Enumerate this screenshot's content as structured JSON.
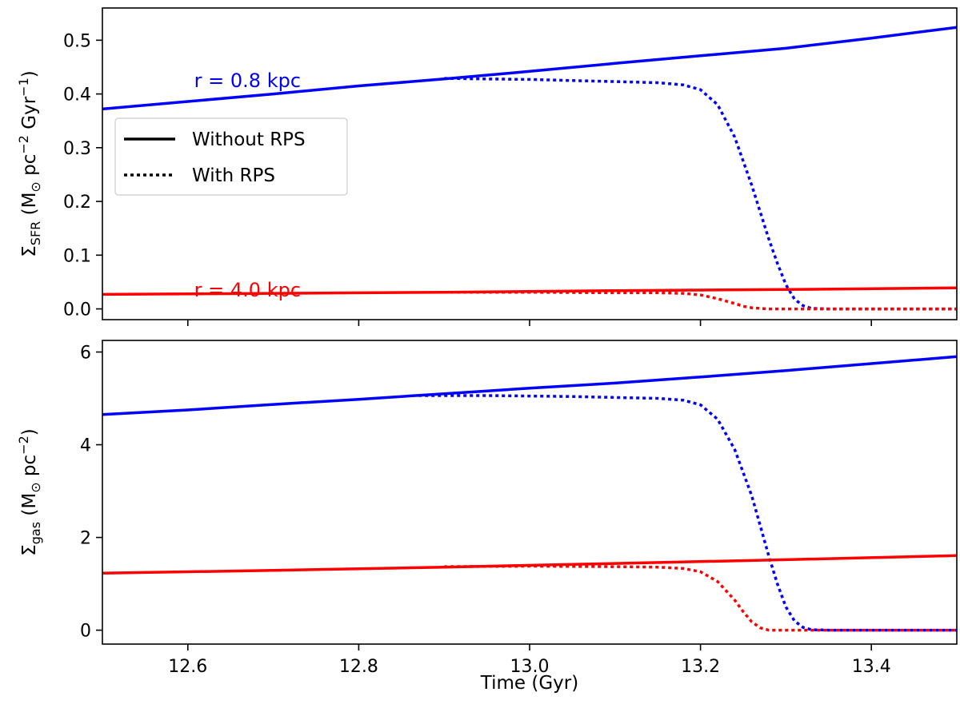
{
  "chart_data": [
    {
      "type": "line",
      "panel": "top",
      "xlim": [
        12.5,
        13.5
      ],
      "ylim": [
        -0.02,
        0.56
      ],
      "yticks": [
        0.0,
        0.1,
        0.2,
        0.3,
        0.4,
        0.5
      ],
      "ytick_labels": [
        "0.0",
        "0.1",
        "0.2",
        "0.3",
        "0.4",
        "0.5"
      ],
      "ylabel_parts": {
        "sym": "Σ",
        "sub": "SFR",
        "pre": " (M",
        "sun": "⊙",
        "mid1": " pc",
        "exp1": "−2",
        "mid2": " Gyr",
        "exp2": "−1",
        "post": ")"
      },
      "annotations": [
        {
          "text": "r = 0.8 kpc",
          "color": "#0000ff",
          "x": 12.51,
          "y": 0.425
        },
        {
          "text": "r = 4.0 kpc",
          "color": "#ff0000",
          "x": 12.51,
          "y": 0.035
        }
      ],
      "series": [
        {
          "name": "r = 0.8 kpc, Without RPS",
          "color": "#0000ff",
          "style": "solid",
          "x": [
            12.5,
            12.6,
            12.7,
            12.8,
            12.9,
            13.0,
            13.1,
            13.2,
            13.3,
            13.4,
            13.5
          ],
          "y": [
            0.372,
            0.386,
            0.4,
            0.415,
            0.428,
            0.442,
            0.457,
            0.471,
            0.485,
            0.504,
            0.524
          ]
        },
        {
          "name": "r = 0.8 kpc, With RPS",
          "color": "#0000ff",
          "style": "dotted",
          "x": [
            12.9,
            12.95,
            13.0,
            13.05,
            13.1,
            13.15,
            13.18,
            13.2,
            13.22,
            13.24,
            13.26,
            13.28,
            13.29,
            13.3,
            13.31,
            13.32,
            13.33,
            13.35,
            13.4,
            13.45,
            13.5
          ],
          "y": [
            0.429,
            0.428,
            0.427,
            0.425,
            0.423,
            0.421,
            0.417,
            0.408,
            0.38,
            0.32,
            0.23,
            0.13,
            0.085,
            0.045,
            0.018,
            0.006,
            0.001,
            0.0,
            0.0,
            0.0,
            0.0
          ]
        },
        {
          "name": "r = 4.0 kpc, Without RPS",
          "color": "#ff0000",
          "style": "solid",
          "x": [
            12.5,
            12.7,
            12.9,
            13.1,
            13.3,
            13.5
          ],
          "y": [
            0.027,
            0.029,
            0.031,
            0.034,
            0.036,
            0.039
          ]
        },
        {
          "name": "r = 4.0 kpc, With RPS",
          "color": "#ff0000",
          "style": "dotted",
          "x": [
            12.9,
            13.0,
            13.1,
            13.15,
            13.18,
            13.2,
            13.22,
            13.24,
            13.25,
            13.26,
            13.28,
            13.3,
            13.4,
            13.5
          ],
          "y": [
            0.031,
            0.031,
            0.03,
            0.03,
            0.029,
            0.026,
            0.019,
            0.01,
            0.005,
            0.002,
            0.0,
            0.0,
            0.0,
            0.0
          ]
        }
      ],
      "legend": {
        "location": "center-left",
        "entries": [
          {
            "label": "Without RPS",
            "style": "solid"
          },
          {
            "label": "With RPS",
            "style": "dotted"
          }
        ]
      }
    },
    {
      "type": "line",
      "panel": "bottom",
      "xlim": [
        12.5,
        13.5
      ],
      "ylim": [
        -0.3,
        6.25
      ],
      "yticks": [
        0,
        2,
        4,
        6
      ],
      "ytick_labels": [
        "0",
        "2",
        "4",
        "6"
      ],
      "xticks": [
        12.6,
        12.8,
        13.0,
        13.2,
        13.4
      ],
      "xtick_labels": [
        "12.6",
        "12.8",
        "13.0",
        "13.2",
        "13.4"
      ],
      "xlabel": "Time (Gyr)",
      "ylabel_parts": {
        "sym": "Σ",
        "sub": "gas",
        "pre": " (M",
        "sun": "⊙",
        "mid1": " pc",
        "exp1": "−2",
        "post": ")"
      },
      "series": [
        {
          "name": "r = 0.8 kpc, Without RPS",
          "color": "#0000ff",
          "style": "solid",
          "x": [
            12.5,
            12.6,
            12.7,
            12.8,
            12.9,
            13.0,
            13.1,
            13.2,
            13.3,
            13.4,
            13.5
          ],
          "y": [
            4.65,
            4.75,
            4.87,
            4.98,
            5.1,
            5.22,
            5.33,
            5.46,
            5.6,
            5.75,
            5.9
          ]
        },
        {
          "name": "r = 0.8 kpc, With RPS",
          "color": "#0000ff",
          "style": "dotted",
          "x": [
            12.87,
            12.95,
            13.0,
            13.05,
            13.1,
            13.15,
            13.18,
            13.2,
            13.22,
            13.24,
            13.26,
            13.28,
            13.29,
            13.3,
            13.31,
            13.32,
            13.33,
            13.35,
            13.4,
            13.45,
            13.5
          ],
          "y": [
            5.06,
            5.06,
            5.05,
            5.04,
            5.02,
            5.0,
            4.96,
            4.86,
            4.55,
            3.9,
            2.9,
            1.6,
            1.0,
            0.5,
            0.2,
            0.06,
            0.01,
            0.0,
            0.0,
            0.0,
            0.0
          ]
        },
        {
          "name": "r = 4.0 kpc, Without RPS",
          "color": "#ff0000",
          "style": "solid",
          "x": [
            12.5,
            12.7,
            12.9,
            13.1,
            13.3,
            13.5
          ],
          "y": [
            1.23,
            1.29,
            1.36,
            1.44,
            1.52,
            1.61
          ]
        },
        {
          "name": "r = 4.0 kpc, With RPS",
          "color": "#ff0000",
          "style": "dotted",
          "x": [
            12.9,
            13.0,
            13.1,
            13.15,
            13.18,
            13.2,
            13.22,
            13.24,
            13.25,
            13.26,
            13.27,
            13.28,
            13.3,
            13.4,
            13.5
          ],
          "y": [
            1.37,
            1.38,
            1.37,
            1.36,
            1.33,
            1.26,
            1.05,
            0.65,
            0.4,
            0.18,
            0.05,
            0.0,
            0.0,
            0.0,
            0.0
          ]
        }
      ]
    }
  ]
}
